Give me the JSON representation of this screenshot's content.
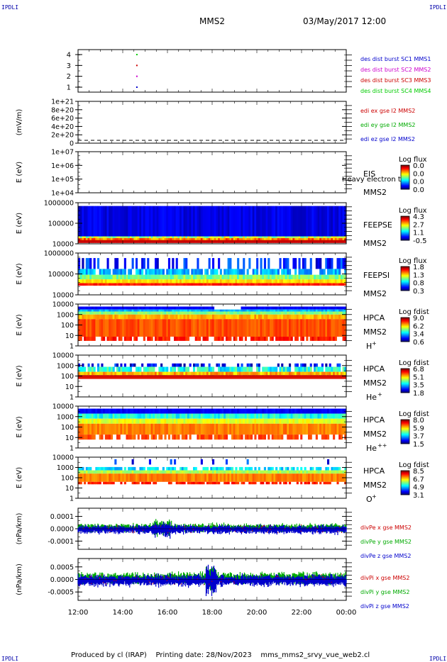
{
  "header": {
    "title": "MMS2",
    "datetime": "03/May/2017 12:00"
  },
  "corner_tag": "IPDLI",
  "footer": {
    "produced_by": "Produced by cl (IRAP)",
    "printing_date": "Printing date: 28/Nov/2023",
    "script_name": "mms_mms2_srvy_vue_web2.cl"
  },
  "x_axis": {
    "ticks": [
      "12:00",
      "14:00",
      "16:00",
      "18:00",
      "20:00",
      "22:00",
      "00:00"
    ],
    "range_hours": [
      12,
      24
    ]
  },
  "chart_data": [
    {
      "type": "scatter",
      "panel": "burst",
      "yticks": [
        "4",
        "3",
        "2",
        "1"
      ],
      "ylim": [
        0.5,
        4.5
      ],
      "series": [
        {
          "name": "des dist burst SC1 MMS1",
          "color": "#0000cc",
          "x": [
            14.6
          ],
          "y": [
            1
          ]
        },
        {
          "name": "des dist burst SC2 MMS2",
          "color": "#cc00cc",
          "x": [
            14.6
          ],
          "y": [
            2
          ]
        },
        {
          "name": "des dist burst SC3 MMS3",
          "color": "#cc0000",
          "x": [
            14.6
          ],
          "y": [
            3
          ]
        },
        {
          "name": "des dist burst SC4 MMS4",
          "color": "#00cc00",
          "x": [
            14.6
          ],
          "y": [
            4
          ]
        }
      ]
    },
    {
      "type": "line",
      "panel": "edi",
      "ylabel": "(mV/m)",
      "yticks": [
        "1e+21",
        "8e+20",
        "6e+20",
        "4e+20",
        "2e+20",
        "0"
      ],
      "ylim": [
        0,
        1e+21
      ],
      "series": [
        {
          "name": "edi ex gse l2 MMS2",
          "color": "#cc0000"
        },
        {
          "name": "edi ey gse l2 MMS2",
          "color": "#00aa00"
        },
        {
          "name": "edi ez gse l2 MMS2",
          "color": "#0000cc"
        }
      ]
    },
    {
      "type": "heatmap",
      "panel": "eis",
      "ylabel": "E (eV)",
      "yticks": [
        "1e+07",
        "1e+06",
        "1e+05",
        "1e+04"
      ],
      "labels": [
        "EIS",
        "MMS2"
      ],
      "overlay_text": "Heavy electron to",
      "colorbar": {
        "title": "Log flux",
        "ticks": [
          "0.0",
          "0.0",
          "0.0",
          "0.0"
        ]
      }
    },
    {
      "type": "heatmap",
      "panel": "feepse",
      "ylabel": "E (eV)",
      "yticks": [
        "1000000",
        "100000",
        "10000"
      ],
      "labels": [
        "FEEPSE",
        "MMS2"
      ],
      "colorbar": {
        "title": "Log flux",
        "ticks": [
          "4.3",
          "2.7",
          "1.1",
          "-0.5"
        ]
      }
    },
    {
      "type": "heatmap",
      "panel": "feepsi",
      "ylabel": "E (eV)",
      "yticks": [
        "1000000",
        "100000",
        "10000"
      ],
      "labels": [
        "FEEPSI",
        "MMS2"
      ],
      "colorbar": {
        "title": "Log flux",
        "ticks": [
          "1.8",
          "1.3",
          "0.8",
          "0.3"
        ]
      }
    },
    {
      "type": "heatmap",
      "panel": "hpca_h",
      "ylabel": "E (eV)",
      "yticks": [
        "10000",
        "1000",
        "100",
        "10",
        "1"
      ],
      "labels": [
        "HPCA",
        "MMS2"
      ],
      "species": "H",
      "charge": "+",
      "colorbar": {
        "title": "Log fdist",
        "ticks": [
          "9.0",
          "6.2",
          "3.4",
          "0.6"
        ]
      }
    },
    {
      "type": "heatmap",
      "panel": "hpca_he",
      "ylabel": "E (eV)",
      "yticks": [
        "10000",
        "1000",
        "100",
        "10",
        "1"
      ],
      "labels": [
        "HPCA",
        "MMS2"
      ],
      "species": "He",
      "charge": "+",
      "colorbar": {
        "title": "Log fdist",
        "ticks": [
          "6.8",
          "5.1",
          "3.5",
          "1.8"
        ]
      }
    },
    {
      "type": "heatmap",
      "panel": "hpca_hepp",
      "ylabel": "E (eV)",
      "yticks": [
        "10000",
        "1000",
        "100",
        "10",
        "1"
      ],
      "labels": [
        "HPCA",
        "MMS2"
      ],
      "species": "He",
      "charge": "++",
      "colorbar": {
        "title": "Log fdist",
        "ticks": [
          "8.0",
          "5.9",
          "3.7",
          "1.5"
        ]
      }
    },
    {
      "type": "heatmap",
      "panel": "hpca_o",
      "ylabel": "E (eV)",
      "yticks": [
        "10000",
        "1000",
        "100",
        "10",
        "1"
      ],
      "labels": [
        "HPCA",
        "MMS2"
      ],
      "species": "O",
      "charge": "+",
      "colorbar": {
        "title": "Log fdist",
        "ticks": [
          "8.5",
          "6.7",
          "4.9",
          "3.1"
        ]
      }
    },
    {
      "type": "line",
      "panel": "divpe",
      "ylabel": "(nPa/km)",
      "yticks": [
        "0.0001",
        "0.0000",
        "-0.0001"
      ],
      "ylim": [
        -0.00017,
        0.00017
      ],
      "series": [
        {
          "name": "divPe x gse MMS2",
          "color": "#cc0000"
        },
        {
          "name": "divPe y gse MMS2",
          "color": "#00aa00"
        },
        {
          "name": "divPe z gse MMS2",
          "color": "#0000cc"
        }
      ]
    },
    {
      "type": "line",
      "panel": "divpi",
      "ylabel": "(nPa/km)",
      "yticks": [
        "0.0005",
        "0.0000",
        "-0.0005"
      ],
      "ylim": [
        -0.0009,
        0.0009
      ],
      "series": [
        {
          "name": "divPi x gse MMS2",
          "color": "#cc0000"
        },
        {
          "name": "divPi y gse MMS2",
          "color": "#00aa00"
        },
        {
          "name": "divPi z gse MMS2",
          "color": "#0000cc"
        }
      ]
    }
  ]
}
